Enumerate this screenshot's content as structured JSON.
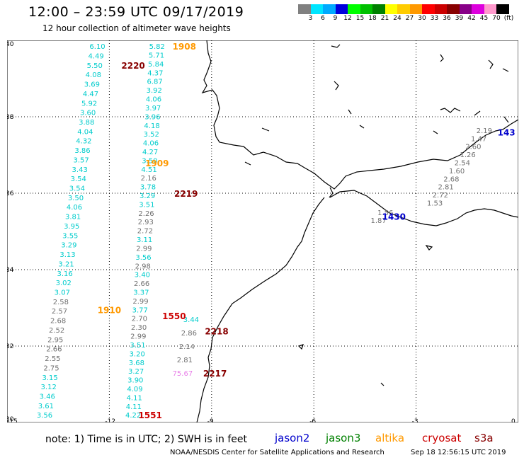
{
  "title": "12:00 – 23:59 UTC 09/17/2019",
  "subtitle": "12 hour collection of altimeter wave heights",
  "colorbar": {
    "labels": [
      "3",
      "6",
      "9",
      "12",
      "15",
      "18",
      "21",
      "24",
      "27",
      "30",
      "33",
      "36",
      "39",
      "42",
      "45",
      "70",
      "(ft)"
    ],
    "colors": [
      "#808080",
      "#00e5ff",
      "#00aaff",
      "#0000dd",
      "#00ff00",
      "#00c000",
      "#008000",
      "#ffff00",
      "#ffcc00",
      "#ff9900",
      "#ff0000",
      "#cc0000",
      "#880000",
      "#880088",
      "#dd00dd",
      "#ff99cc",
      "#000000"
    ]
  },
  "axes": {
    "lat_labels": [
      "40",
      "38",
      "36",
      "34",
      "32",
      "30"
    ],
    "lon_labels": [
      "-15",
      "-12",
      "-9",
      "-6",
      "-3",
      "0"
    ]
  },
  "colors": {
    "jason2": "#0000cc",
    "jason3": "#008000",
    "altika": "#ff9900",
    "cryosat": "#cc0000",
    "s3a": "#880000",
    "cyan": "#00cccc",
    "gray": "#707070",
    "pink": "#e87fe8"
  },
  "pass_labels": [
    {
      "text": "1908",
      "sat": "altika",
      "lat": 39.85,
      "lon": -9.8
    },
    {
      "text": "2220",
      "sat": "s3a",
      "lat": 39.35,
      "lon": -11.3
    },
    {
      "text": "1909",
      "sat": "altika",
      "lat": 36.8,
      "lon": -10.6
    },
    {
      "text": "2219",
      "sat": "s3a",
      "lat": 36.0,
      "lon": -9.75
    },
    {
      "text": "1910",
      "sat": "altika",
      "lat": 32.95,
      "lon": -12.0
    },
    {
      "text": "1550",
      "sat": "cryosat",
      "lat": 32.8,
      "lon": -10.1
    },
    {
      "text": "2218",
      "sat": "s3a",
      "lat": 32.4,
      "lon": -8.85
    },
    {
      "text": "2217",
      "sat": "s3a",
      "lat": 31.3,
      "lon": -8.9
    },
    {
      "text": "1551",
      "sat": "cryosat",
      "lat": 30.2,
      "lon": -10.8
    },
    {
      "text": "1430",
      "sat": "jason2",
      "lat": 35.4,
      "lon": -3.65
    },
    {
      "text": "143",
      "sat": "jason2",
      "lat": 37.6,
      "lon": -0.35
    }
  ],
  "tracks": [
    {
      "sat": "cyan",
      "lon_start": -12.35,
      "lon_end": -13.9,
      "lat_start": 39.85,
      "lat_end": 30.2,
      "values": [
        "6.10",
        "4.49",
        "5.50",
        "4.08",
        "3.69",
        "4.47",
        "5.92",
        "3.60",
        "3.88",
        "4.04",
        "4.32",
        "3.86",
        "3.57",
        "3.43",
        "3.54",
        "3.54",
        "3.50",
        "4.06",
        "3.81",
        "3.95",
        "3.55",
        "3.29",
        "3.13",
        "3.21",
        "3.16",
        "3.02",
        "3.07",
        "2.58",
        "2.57",
        "2.68",
        "2.52",
        "2.95",
        "2.66",
        "2.55",
        "2.75",
        "3.15",
        "3.12",
        "3.46",
        "3.61",
        "3.56"
      ],
      "gray": [
        27,
        28,
        29,
        30,
        31,
        32,
        33,
        34
      ]
    },
    {
      "sat": "cyan",
      "lon_start": -10.6,
      "lon_end": -11.3,
      "lat_start": 39.85,
      "lat_end": 30.2,
      "values": [
        "5.82",
        "5.71",
        "5.84",
        "4.37",
        "6.87",
        "3.92",
        "4.06",
        "3.97",
        "3.96",
        "4.18",
        "3.52",
        "4.06",
        "4.27",
        "3.50",
        "4.51",
        "2.16",
        "3.78",
        "3.29",
        "3.51",
        "2.26",
        "2.93",
        "2.72",
        "3.11",
        "2.99",
        "3.56",
        "2.98",
        "3.40",
        "2.66",
        "3.37",
        "2.99",
        "3.77",
        "2.70",
        "2.30",
        "2.99",
        "3.51",
        "3.20",
        "3.68",
        "3.27",
        "3.90",
        "4.09",
        "4.11",
        "4.11",
        "4.22"
      ],
      "gray": [
        15,
        19,
        20,
        21,
        23,
        25,
        27,
        29,
        31,
        32,
        33
      ]
    },
    {
      "sat": "gray",
      "lon_start": -9.6,
      "lon_end": -9.85,
      "lat_start": 32.7,
      "lat_end": 31.3,
      "values": [
        "3.44",
        "2.86",
        "2.14",
        "2.81",
        "75.67"
      ],
      "cyan": [
        0
      ],
      "pink": [
        4
      ]
    },
    {
      "sat": "gray",
      "lon_start": -1.0,
      "lon_end": -2.45,
      "lat_start": 37.65,
      "lat_end": 35.75,
      "values": [
        "2.19",
        "1.47",
        "2.60",
        "1.26",
        "2.54",
        "1.60",
        "2.68",
        "2.81",
        "2.72",
        "1.53"
      ]
    },
    {
      "sat": "gray",
      "lon_start": -3.9,
      "lon_end": -4.1,
      "lat_start": 35.5,
      "lat_end": 35.3,
      "values": [
        "1.56",
        "1.87"
      ]
    }
  ],
  "note": "note: 1) Time is in UTC; 2) SWH is in feet",
  "legend": [
    {
      "name": "jason2",
      "color": "#0000cc"
    },
    {
      "name": "jason3",
      "color": "#008000"
    },
    {
      "name": "altika",
      "color": "#ff9900"
    },
    {
      "name": "cryosat",
      "color": "#cc0000"
    },
    {
      "name": "s3a",
      "color": "#880000"
    }
  ],
  "credit": "NOAA/NESDIS Center for Satellite Applications and Research",
  "timestamp": "Sep 18 12:56:15 UTC 2019"
}
